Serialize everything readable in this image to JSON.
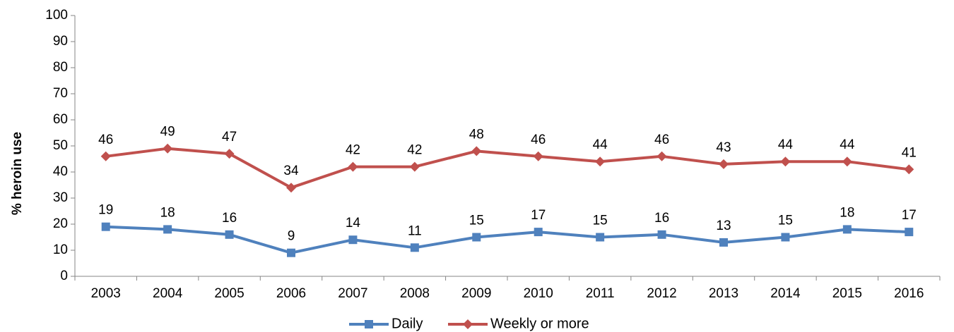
{
  "chart_data": {
    "type": "line",
    "title": "",
    "xlabel": "",
    "ylabel": "% heroin use",
    "ylim": [
      0,
      100
    ],
    "yticks": [
      0,
      10,
      20,
      30,
      40,
      50,
      60,
      70,
      80,
      90,
      100
    ],
    "categories": [
      "2003",
      "2004",
      "2005",
      "2006",
      "2007",
      "2008",
      "2009",
      "2010",
      "2011",
      "2012",
      "2013",
      "2014",
      "2015",
      "2016"
    ],
    "series": [
      {
        "name": "Daily",
        "color": "#4F81BD",
        "marker": "square",
        "values": [
          19,
          18,
          16,
          9,
          14,
          11,
          15,
          17,
          15,
          16,
          13,
          15,
          18,
          17
        ]
      },
      {
        "name": "Weekly or more",
        "color": "#C0504D",
        "marker": "diamond",
        "values": [
          46,
          49,
          47,
          34,
          42,
          42,
          48,
          46,
          44,
          46,
          43,
          44,
          44,
          41
        ]
      }
    ],
    "data_labels": true,
    "grid": false,
    "legend": "bottom"
  }
}
